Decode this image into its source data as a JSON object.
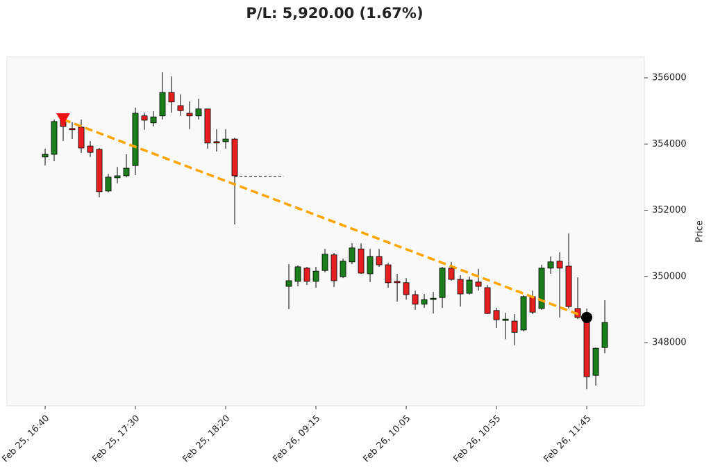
{
  "chart_data": {
    "type": "candlestick",
    "title": "P/L: 5,920.00 (1.67%)",
    "y_label": "Price",
    "up_color": "#1a7f1a",
    "down_color": "#e62020",
    "x": [
      0,
      1,
      2,
      3,
      4,
      5,
      6,
      7,
      8,
      9,
      10,
      11,
      12,
      13,
      14,
      15,
      16,
      17,
      18,
      19,
      20,
      21,
      27,
      28,
      29,
      30,
      31,
      32,
      33,
      34,
      35,
      36,
      37,
      38,
      39,
      40,
      41,
      42,
      43,
      44,
      45,
      46,
      47,
      48,
      49,
      50,
      51,
      52,
      53,
      54,
      55,
      56,
      57,
      58,
      59,
      60,
      61,
      62
    ],
    "open": [
      353610,
      353690,
      354740,
      354470,
      354510,
      353940,
      353840,
      352580,
      352980,
      353040,
      353350,
      354850,
      354640,
      354850,
      355560,
      355160,
      354930,
      354850,
      355060,
      354070,
      354070,
      354150,
      349700,
      349850,
      350250,
      349850,
      350180,
      350650,
      349990,
      350440,
      350830,
      350080,
      350600,
      350350,
      349850,
      349810,
      349450,
      349160,
      349300,
      349360,
      350250,
      349910,
      349490,
      349830,
      349660,
      348970,
      348670,
      348650,
      348380,
      349390,
      349030,
      350250,
      350460,
      350310,
      349030,
      348760,
      347010,
      347850
    ],
    "high": [
      353860,
      354740,
      354820,
      354660,
      354740,
      354090,
      353880,
      353100,
      353310,
      353690,
      355100,
      354950,
      354990,
      356170,
      356040,
      355500,
      355290,
      355370,
      355060,
      354450,
      354450,
      354190,
      350370,
      350330,
      350290,
      350290,
      350830,
      350710,
      350540,
      351000,
      351000,
      350830,
      350830,
      350410,
      350080,
      349950,
      349570,
      349470,
      349530,
      350290,
      350440,
      350040,
      349990,
      350230,
      349740,
      349050,
      348900,
      348860,
      349430,
      349570,
      350350,
      350600,
      350730,
      351300,
      349970,
      349030,
      347850,
      349280
    ],
    "low": [
      353350,
      353480,
      354090,
      354150,
      353730,
      353610,
      352390,
      352540,
      352810,
      352990,
      353060,
      354430,
      354530,
      354740,
      354950,
      354850,
      354450,
      354740,
      353860,
      353770,
      353860,
      351570,
      349010,
      349700,
      349740,
      349660,
      350120,
      349680,
      349950,
      350370,
      350080,
      349830,
      350290,
      349660,
      349240,
      349300,
      348990,
      349050,
      348880,
      349050,
      349870,
      349090,
      349450,
      349570,
      348860,
      348440,
      348100,
      347920,
      348340,
      348860,
      348990,
      350080,
      348760,
      349030,
      348710,
      346590,
      346700,
      347680
    ],
    "close": [
      353690,
      354680,
      354530,
      354430,
      353880,
      353750,
      352560,
      353000,
      353040,
      353270,
      354930,
      354720,
      354820,
      355560,
      355270,
      355010,
      354850,
      355060,
      354030,
      354030,
      354150,
      353040,
      349870,
      350290,
      349850,
      350160,
      350670,
      349870,
      350460,
      350860,
      350100,
      350600,
      350350,
      349810,
      349810,
      349450,
      349160,
      349300,
      349340,
      350250,
      349910,
      349470,
      349890,
      349700,
      348880,
      348690,
      348710,
      348310,
      349390,
      348920,
      350250,
      350440,
      350250,
      349090,
      348760,
      346970,
      347830,
      348610
    ],
    "gap_line": 353020,
    "markers": [
      {
        "x": 2,
        "y": 354740,
        "shape": "triangle-down",
        "color": "#ee1111"
      },
      {
        "x": 60,
        "y": 348760,
        "shape": "circle",
        "color": "#000000"
      }
    ],
    "trade_line_color": "#ffa500",
    "xlim": [
      -4.23,
      66.38
    ],
    "xticks": [
      {
        "value": 0,
        "label": "Feb 25, 16:40"
      },
      {
        "value": 10,
        "label": "Feb 25, 17:30"
      },
      {
        "value": 20,
        "label": "Feb 25, 18:20"
      },
      {
        "value": 30,
        "label": "Feb 26, 09:15"
      },
      {
        "value": 40,
        "label": "Feb 26, 10:05"
      },
      {
        "value": 50,
        "label": "Feb 26, 10:55"
      },
      {
        "value": 60,
        "label": "Feb 26, 11:45"
      }
    ],
    "ylim": [
      346090,
      356630
    ],
    "yticks": [
      348000,
      350000,
      352000,
      354000,
      356000
    ]
  }
}
